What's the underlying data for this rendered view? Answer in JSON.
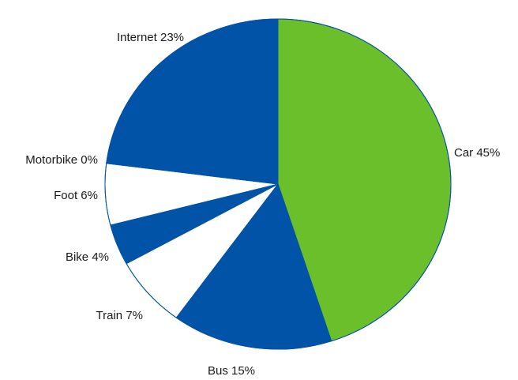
{
  "chart_data": {
    "type": "pie",
    "title": "",
    "slices": [
      {
        "label": "Car",
        "value": 45,
        "display": "Car 45%",
        "color": "#6abf2a"
      },
      {
        "label": "Bus",
        "value": 15,
        "display": "Bus 15%",
        "color": "#0053a6"
      },
      {
        "label": "Train",
        "value": 7,
        "display": "Train 7%",
        "color": "#ffffff"
      },
      {
        "label": "Bike",
        "value": 4,
        "display": "Bike 4%",
        "color": "#0053a6"
      },
      {
        "label": "Foot",
        "value": 6,
        "display": "Foot 6%",
        "color": "#ffffff"
      },
      {
        "label": "Motorbike",
        "value": 0,
        "display": "Motorbike 0%",
        "color": "#ffffff"
      },
      {
        "label": "Internet",
        "value": 23,
        "display": "Internet 23%",
        "color": "#0053a6"
      }
    ],
    "start": "12 o'clock",
    "direction": "clockwise",
    "edge_color": "#0053a6"
  }
}
